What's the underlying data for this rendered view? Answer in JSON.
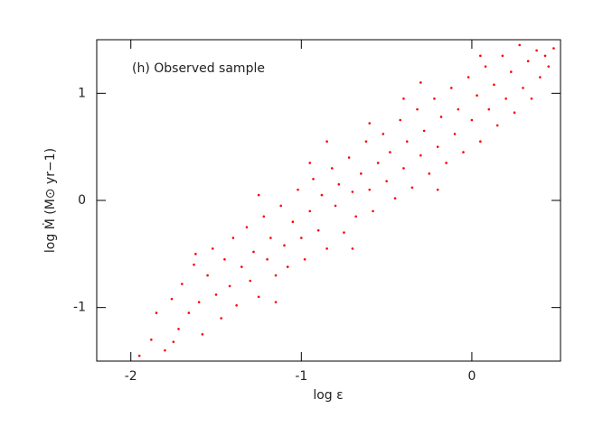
{
  "chart_data": {
    "type": "scatter",
    "annotation": "(h) Observed sample",
    "x_label": "log ε",
    "y_label": "log Ṁ (M⊙ yr−1)",
    "color": "#ff0000",
    "xlim": [
      -2.2,
      0.52
    ],
    "ylim": [
      -1.5,
      1.5
    ],
    "xticks": [
      -2,
      -1,
      0
    ],
    "yticks": [
      -1,
      0,
      1
    ],
    "x": [
      -1.88,
      -1.85,
      -1.8,
      -1.76,
      -1.72,
      -1.7,
      -1.66,
      -1.63,
      -1.6,
      -1.58,
      -1.55,
      -1.52,
      -1.5,
      -1.47,
      -1.45,
      -1.42,
      -1.4,
      -1.38,
      -1.35,
      -1.32,
      -1.3,
      -1.28,
      -1.25,
      -1.22,
      -1.2,
      -1.18,
      -1.15,
      -1.12,
      -1.1,
      -1.08,
      -1.05,
      -1.02,
      -1.0,
      -0.98,
      -0.95,
      -0.93,
      -0.9,
      -0.88,
      -0.85,
      -0.82,
      -0.8,
      -0.78,
      -0.75,
      -0.72,
      -0.7,
      -0.68,
      -0.65,
      -0.62,
      -0.6,
      -0.58,
      -0.55,
      -0.52,
      -0.5,
      -0.48,
      -0.45,
      -0.42,
      -0.4,
      -0.38,
      -0.35,
      -0.32,
      -0.3,
      -0.28,
      -0.25,
      -0.22,
      -0.2,
      -0.18,
      -0.15,
      -0.12,
      -0.1,
      -0.08,
      -0.05,
      -0.02,
      0.0,
      0.03,
      0.05,
      0.08,
      0.1,
      0.13,
      0.15,
      0.18,
      0.2,
      0.23,
      0.25,
      0.28,
      0.3,
      0.33,
      0.35,
      0.38,
      0.4,
      0.43,
      0.45,
      0.48,
      -1.95,
      -1.75,
      -1.62,
      -1.15,
      -0.95,
      -0.7,
      -0.4,
      -0.6,
      -0.2,
      0.05,
      -0.3,
      -1.25,
      -0.85
    ],
    "y": [
      -1.3,
      -1.05,
      -1.4,
      -0.92,
      -1.2,
      -0.78,
      -1.05,
      -0.6,
      -0.95,
      -1.25,
      -0.7,
      -0.45,
      -0.88,
      -1.1,
      -0.55,
      -0.8,
      -0.35,
      -0.98,
      -0.62,
      -0.25,
      -0.75,
      -0.48,
      -0.9,
      -0.15,
      -0.55,
      -0.35,
      -0.7,
      -0.05,
      -0.42,
      -0.62,
      -0.2,
      0.1,
      -0.35,
      -0.55,
      -0.1,
      0.2,
      -0.28,
      0.05,
      -0.45,
      0.3,
      -0.05,
      0.15,
      -0.3,
      0.4,
      0.08,
      -0.15,
      0.25,
      0.55,
      0.1,
      -0.1,
      0.35,
      0.62,
      0.18,
      0.45,
      0.02,
      0.75,
      0.3,
      0.55,
      0.12,
      0.85,
      0.42,
      0.65,
      0.25,
      0.95,
      0.5,
      0.78,
      0.35,
      1.05,
      0.62,
      0.85,
      0.45,
      1.15,
      0.75,
      0.98,
      0.55,
      1.25,
      0.85,
      1.08,
      0.7,
      1.35,
      0.95,
      1.2,
      0.82,
      1.45,
      1.05,
      1.3,
      0.95,
      1.4,
      1.15,
      1.35,
      1.25,
      1.42,
      -1.45,
      -1.32,
      -0.5,
      -0.95,
      0.35,
      -0.45,
      0.95,
      0.72,
      0.1,
      1.35,
      1.1,
      0.05,
      0.55
    ]
  }
}
